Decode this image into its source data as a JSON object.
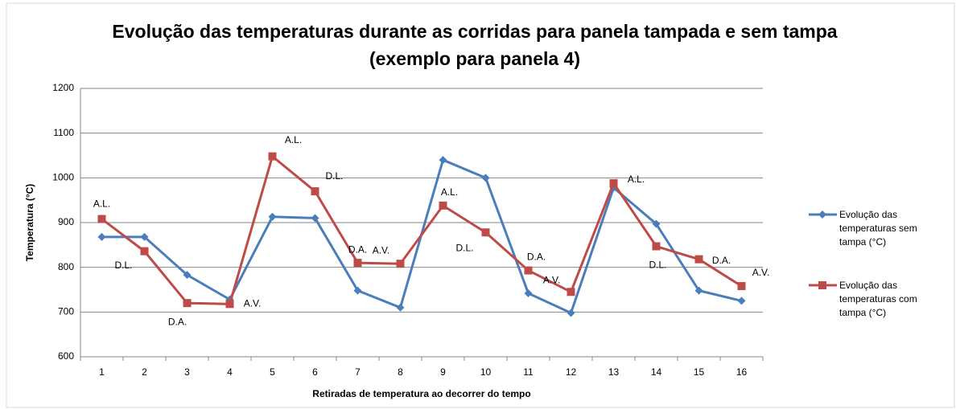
{
  "chart_data": {
    "type": "line",
    "title": "Evolução das temperaturas durante as corridas para panela tampada e sem tampa (exemplo para panela 4)",
    "xlabel": "Retiradas de temperatura ao decorrer do tempo",
    "ylabel": "Temperatura (°C)",
    "categories": [
      "1",
      "2",
      "3",
      "4",
      "5",
      "6",
      "7",
      "8",
      "9",
      "10",
      "11",
      "12",
      "13",
      "14",
      "15",
      "16"
    ],
    "ylim": [
      600,
      1200
    ],
    "yticks": [
      600,
      700,
      800,
      900,
      1000,
      1100,
      1200
    ],
    "grid": true,
    "legend": "right",
    "series": [
      {
        "name": "Evolução das temperaturas sem tampa (°C)",
        "color": "#4a7ebb",
        "marker": "diamond",
        "values": [
          868,
          868,
          783,
          728,
          913,
          910,
          748,
          710,
          1040,
          1000,
          742,
          698,
          978,
          897,
          748,
          725
        ]
      },
      {
        "name": "Evolução das temperaturas com tampa (°C)",
        "color": "#be4b48",
        "marker": "square",
        "values": [
          908,
          836,
          720,
          718,
          1048,
          970,
          810,
          808,
          938,
          878,
          793,
          745,
          988,
          847,
          818,
          758
        ],
        "point_labels": [
          "A.L.",
          "D.L.",
          "D.A.",
          "A.V.",
          "A.L.",
          "D.L.",
          "D.A.",
          "A.V.",
          "A.L.",
          "D.L.",
          "D.A.",
          "A.V.",
          "A.L.",
          "D.L.",
          "D.A.",
          "A.V."
        ]
      }
    ]
  }
}
